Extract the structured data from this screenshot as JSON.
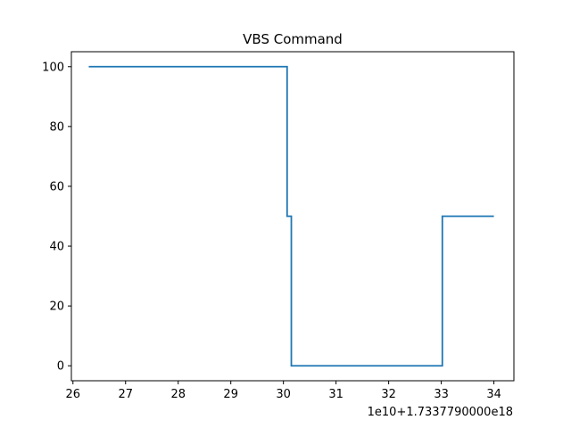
{
  "chart_data": {
    "type": "line",
    "title": "VBS Command",
    "xlabel": "",
    "ylabel": "",
    "x_offset_label": "1e10+1.7337790000e18",
    "xlim": [
      25.97,
      34.38
    ],
    "ylim": [
      -5,
      105
    ],
    "x_ticks": [
      26,
      27,
      28,
      29,
      30,
      31,
      32,
      33,
      34
    ],
    "y_ticks": [
      0,
      20,
      40,
      60,
      80,
      100
    ],
    "grid": false,
    "line_color": "#1f77b4",
    "series": [
      {
        "x": [
          26.3,
          30.07,
          30.07,
          30.15,
          30.15,
          33.02,
          33.02,
          34.0
        ],
        "y": [
          100,
          100,
          50,
          50,
          0,
          0,
          50,
          50
        ]
      }
    ]
  }
}
